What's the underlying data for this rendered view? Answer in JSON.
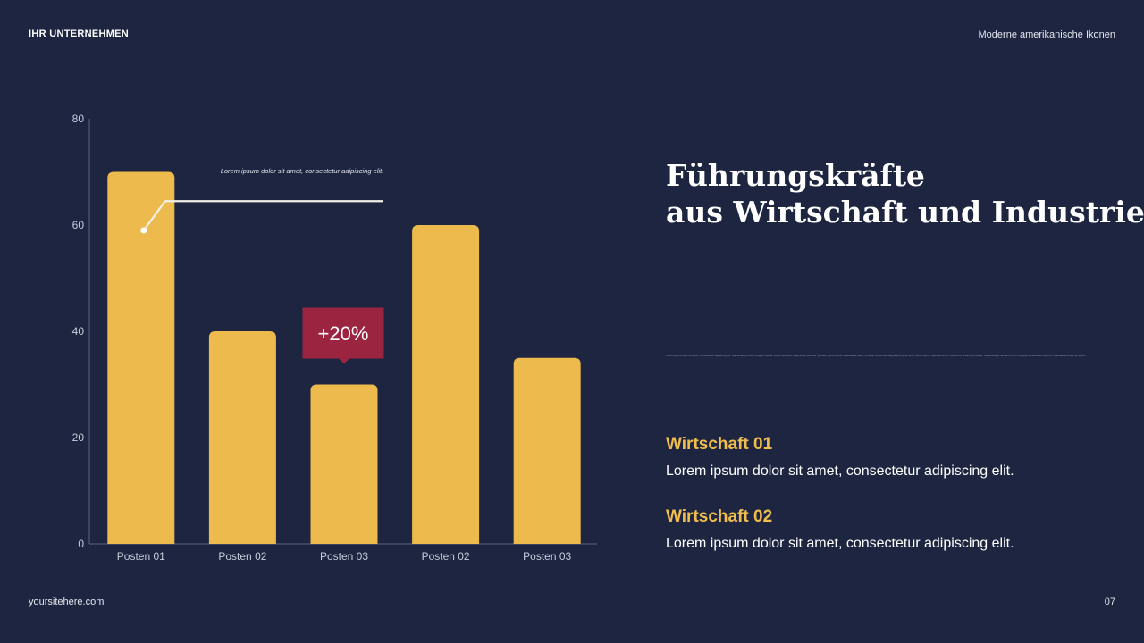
{
  "header": {
    "brand": "IHR UNTERNEHMEN",
    "topic": "Moderne amerikanische Ikonen"
  },
  "footer": {
    "site": "yoursitehere.com",
    "page": "07"
  },
  "colors": {
    "background": "#1d2540",
    "bar": "#ecba4d",
    "badge": "#9b2440",
    "accent": "#f0bd4f",
    "axis": "#5b6380"
  },
  "chart_data": {
    "type": "bar",
    "categories": [
      "Posten 01",
      "Posten 02",
      "Posten 03",
      "Posten 02",
      "Posten 03"
    ],
    "values": [
      70,
      40,
      30,
      60,
      35
    ],
    "ylim": [
      0,
      80
    ],
    "yticks": [
      0,
      20,
      40,
      60,
      80
    ],
    "grid": false,
    "annotations": {
      "callout_text": "Lorem ipsum dolor sit amet, consectetur adipiscing elit.",
      "callout_level": 64.5,
      "badge_text": "+20%"
    }
  },
  "main": {
    "title_line1": "Führungskräfte",
    "title_line2": "aus Wirtschaft und Industrie",
    "fineprint": "Lorem ipsum dolor sit amet, consectetur adipiscing elit. Maecenas porttitor congue massa. Fusce posuere, magna sed pulvinar ultricies, purus lectus malesuada libero, sit amet commodo magna eros quis urna. Nunc viverra imperdiet enim. Fusce est. Vivamus a tellus. Pellentesque habitant morbi tristique senectus et netus et malesuada fames ac turpis egestas.",
    "items": [
      {
        "heading": "Wirtschaft 01",
        "text": "Lorem ipsum dolor sit amet, consectetur adipiscing elit."
      },
      {
        "heading": "Wirtschaft 02",
        "text": "Lorem ipsum dolor sit amet, consectetur adipiscing elit."
      }
    ]
  }
}
